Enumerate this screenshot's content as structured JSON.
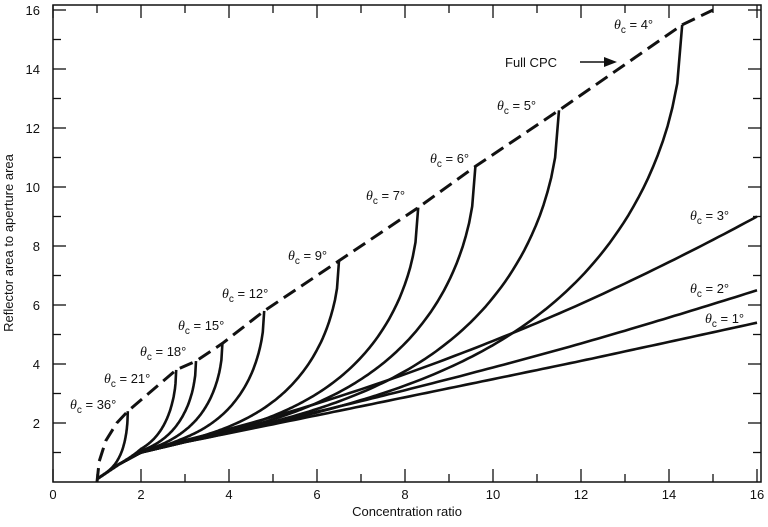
{
  "chart_data": {
    "type": "line",
    "title": "",
    "xlabel": "Concentration ratio",
    "ylabel": "Reflector area to aperture area",
    "xlim": [
      0,
      16
    ],
    "ylim": [
      0,
      16
    ],
    "xticks": [
      "0",
      "2",
      "4",
      "6",
      "8",
      "10",
      "12",
      "14",
      "16"
    ],
    "yticks": [
      "2",
      "4",
      "6",
      "8",
      "10",
      "12",
      "14",
      "16"
    ],
    "full_cpc": {
      "name": "Full CPC",
      "style": "dashed",
      "points": [
        [
          1,
          0
        ],
        [
          1.05,
          0.7
        ],
        [
          1.2,
          1.4
        ],
        [
          1.45,
          2.0
        ],
        [
          1.7,
          2.4
        ],
        [
          2.8,
          3.8
        ],
        [
          3.25,
          4.1
        ],
        [
          3.85,
          4.7
        ],
        [
          4.8,
          5.8
        ],
        [
          6.5,
          7.5
        ],
        [
          8.3,
          9.3
        ],
        [
          9.6,
          10.7
        ],
        [
          11.5,
          12.6
        ],
        [
          14.3,
          15.5
        ],
        [
          15,
          16
        ]
      ]
    },
    "series": [
      {
        "name": "θc = 36°",
        "theta": "36°",
        "end": [
          1.7,
          2.4
        ],
        "truncated_to_full": true
      },
      {
        "name": "θc = 21°",
        "theta": "21°",
        "end": [
          2.8,
          3.8
        ],
        "truncated_to_full": true
      },
      {
        "name": "θc = 18°",
        "theta": "18°",
        "end": [
          3.25,
          4.1
        ],
        "truncated_to_full": true
      },
      {
        "name": "θc = 15°",
        "theta": "15°",
        "end": [
          3.85,
          4.7
        ],
        "truncated_to_full": true
      },
      {
        "name": "θc = 12°",
        "theta": "12°",
        "end": [
          4.8,
          5.8
        ],
        "truncated_to_full": true
      },
      {
        "name": "θc = 9°",
        "theta": "9°",
        "end": [
          6.5,
          7.5
        ],
        "truncated_to_full": true
      },
      {
        "name": "θc = 7°",
        "theta": "7°",
        "end": [
          8.3,
          9.3
        ],
        "truncated_to_full": true
      },
      {
        "name": "θc = 6°",
        "theta": "6°",
        "end": [
          9.6,
          10.7
        ],
        "truncated_to_full": true
      },
      {
        "name": "θc = 5°",
        "theta": "5°",
        "end": [
          11.5,
          12.6
        ],
        "truncated_to_full": true
      },
      {
        "name": "θc = 4°",
        "theta": "4°",
        "end": [
          14.3,
          15.5
        ],
        "truncated_to_full": true
      },
      {
        "name": "θc = 3°",
        "theta": "3°",
        "end": [
          16,
          9.0
        ],
        "truncated_to_full": false
      },
      {
        "name": "θc = 2°",
        "theta": "2°",
        "end": [
          16,
          6.5
        ],
        "truncated_to_full": false
      },
      {
        "name": "θc = 1°",
        "theta": "1°",
        "end": [
          16,
          5.4
        ],
        "truncated_to_full": false
      }
    ],
    "annotations": {
      "full_cpc_label": "Full CPC",
      "theta_symbol": "θ",
      "theta_sub": "c"
    },
    "grid": false
  }
}
